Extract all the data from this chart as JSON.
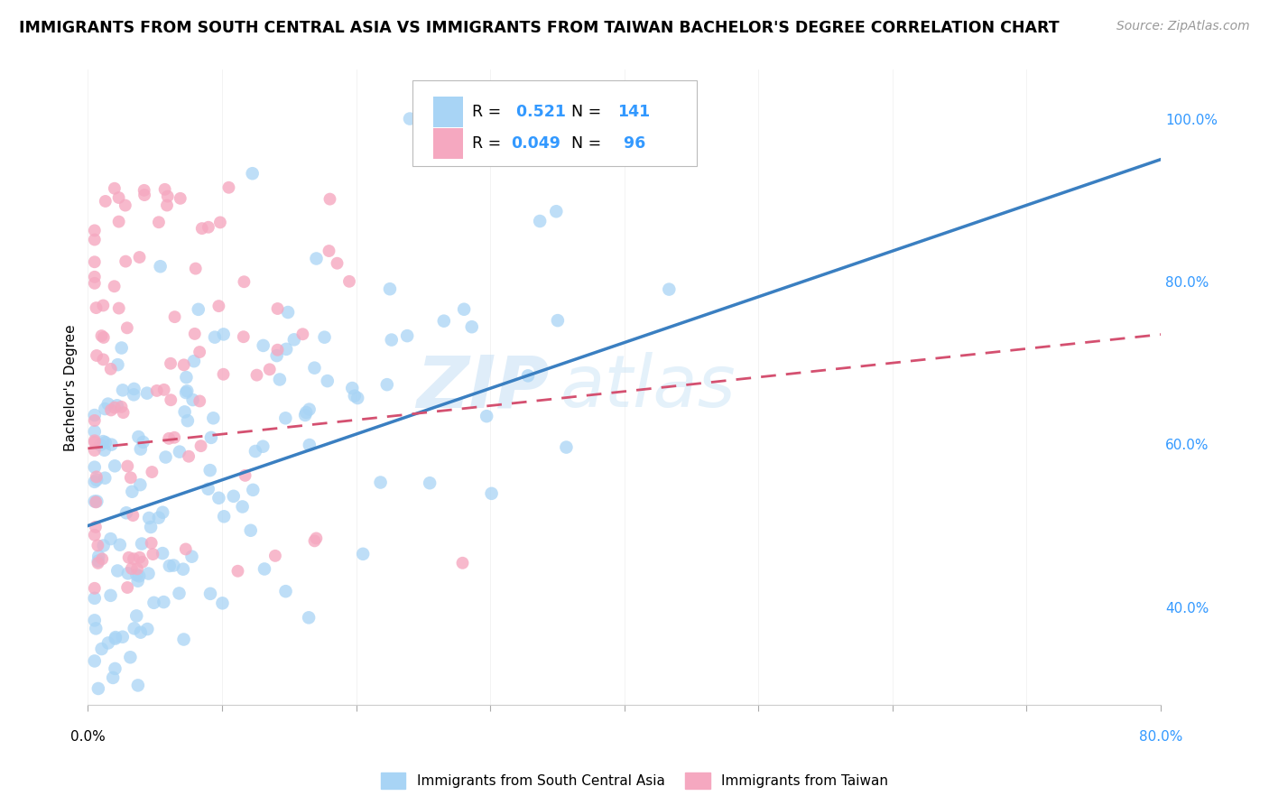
{
  "title": "IMMIGRANTS FROM SOUTH CENTRAL ASIA VS IMMIGRANTS FROM TAIWAN BACHELOR'S DEGREE CORRELATION CHART",
  "source": "Source: ZipAtlas.com",
  "ylabel": "Bachelor's Degree",
  "yticks": [
    "40.0%",
    "60.0%",
    "80.0%",
    "100.0%"
  ],
  "ytick_vals": [
    0.4,
    0.6,
    0.8,
    1.0
  ],
  "xlim": [
    0.0,
    0.8
  ],
  "ylim": [
    0.28,
    1.06
  ],
  "r_blue": 0.521,
  "n_blue": 141,
  "r_pink": 0.049,
  "n_pink": 96,
  "color_blue": "#A8D4F5",
  "color_pink": "#F5A8C0",
  "color_blue_line": "#3A7FC1",
  "color_pink_line": "#D45070",
  "legend_label_blue": "Immigrants from South Central Asia",
  "legend_label_pink": "Immigrants from Taiwan",
  "watermark_zip": "ZIP",
  "watermark_atlas": "atlas",
  "title_fontsize": 12.5,
  "source_fontsize": 10,
  "blue_trend_x0": 0.0,
  "blue_trend_y0": 0.5,
  "blue_trend_x1": 0.8,
  "blue_trend_y1": 0.95,
  "pink_trend_x0": 0.0,
  "pink_trend_y0": 0.595,
  "pink_trend_x1": 0.8,
  "pink_trend_y1": 0.735
}
